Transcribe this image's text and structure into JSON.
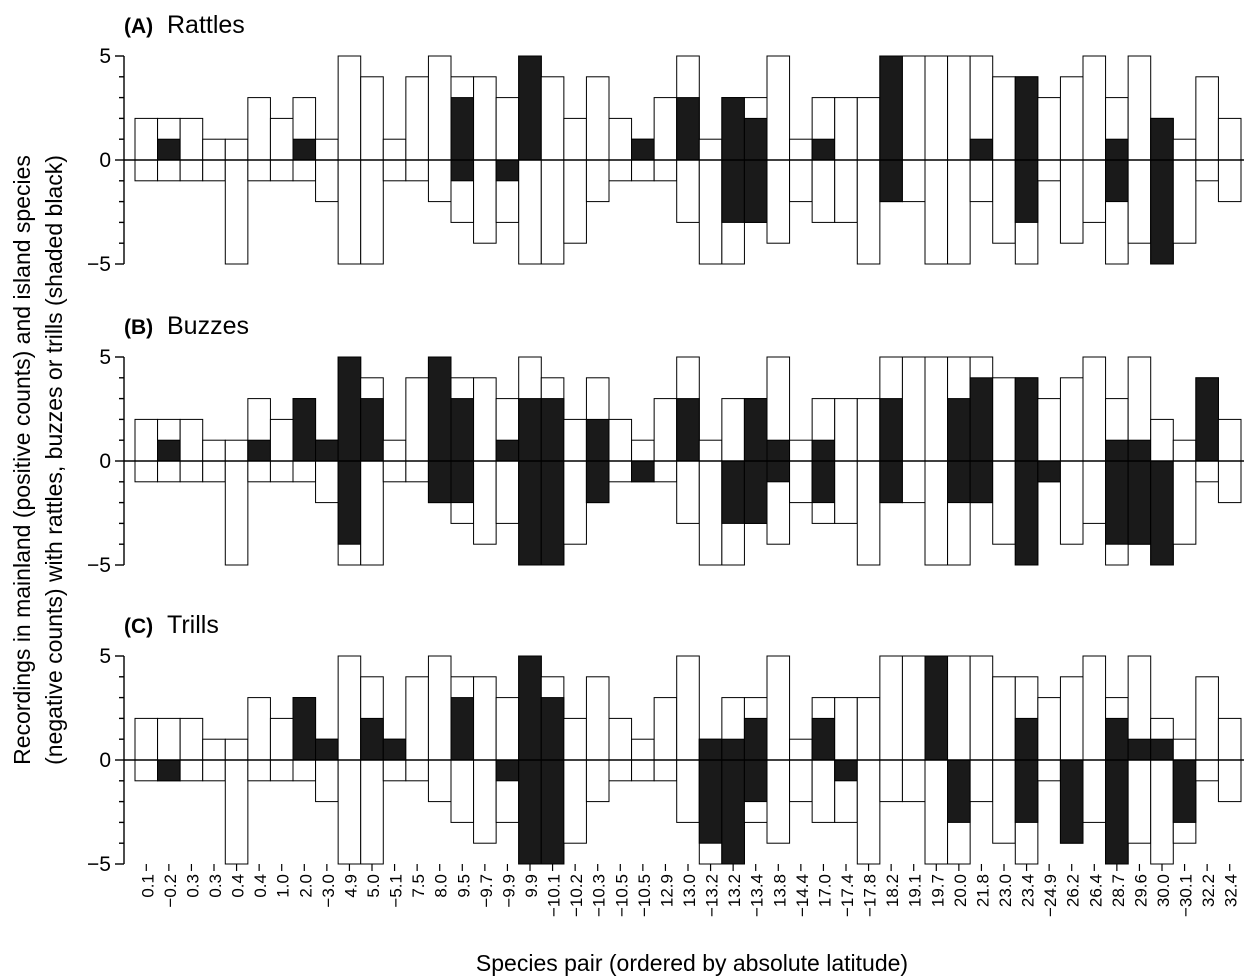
{
  "figure": {
    "ylabel_line1": "Recordings in mainland (positive counts) and island species",
    "ylabel_line2": "(negative counts) with rattles, buzzes or trills (shaded black)",
    "xlabel": "Species pair (ordered by absolute latitude)"
  },
  "chart_data": {
    "type": "bar",
    "categories": [
      "0.1",
      "−0.2",
      "0.3",
      "0.3",
      "0.4",
      "0.4",
      "1.0",
      "2.0",
      "−3.0",
      "4.9",
      "5.0",
      "−5.1",
      "7.5",
      "8.0",
      "9.5",
      "−9.7",
      "−9.9",
      "9.9",
      "−10.1",
      "−10.2",
      "−10.3",
      "−10.5",
      "−10.5",
      "12.9",
      "13.0",
      "−13.2",
      "13.2",
      "−13.4",
      "13.8",
      "−14.4",
      "17.0",
      "−17.4",
      "−17.8",
      "18.2",
      "19.1",
      "19.7",
      "20.0",
      "21.8",
      "23.0",
      "23.4",
      "−24.9",
      "26.2",
      "26.4",
      "28.7",
      "29.6",
      "30.0",
      "−30.1",
      "32.2",
      "32.4"
    ],
    "ylim": [
      -5,
      5
    ],
    "yticks": [
      "5",
      "0",
      "−5"
    ],
    "mainland_totals": [
      2,
      2,
      2,
      1,
      1,
      3,
      2,
      3,
      1,
      5,
      4,
      1,
      4,
      5,
      4,
      4,
      3,
      5,
      4,
      2,
      4,
      2,
      1,
      3,
      5,
      1,
      3,
      3,
      5,
      1,
      3,
      3,
      3,
      5,
      5,
      5,
      5,
      5,
      4,
      4,
      3,
      4,
      5,
      3,
      5,
      2,
      1,
      4,
      2
    ],
    "island_totals": [
      -1,
      -1,
      -1,
      -1,
      -5,
      -1,
      -1,
      -1,
      -2,
      -5,
      -5,
      -1,
      -1,
      -2,
      -3,
      -4,
      -3,
      -5,
      -5,
      -4,
      -2,
      -1,
      -1,
      -1,
      -3,
      -5,
      -5,
      -3,
      -4,
      -2,
      -3,
      -3,
      -5,
      -2,
      -2,
      -5,
      -5,
      -2,
      -4,
      -5,
      -1,
      -4,
      -3,
      -5,
      -4,
      -5,
      -4,
      -1,
      -2
    ],
    "series": [
      {
        "name": "Rattles",
        "panel_label": "(A)",
        "mainland_shaded": [
          0,
          1,
          0,
          0,
          0,
          0,
          0,
          1,
          0,
          0,
          0,
          0,
          0,
          0,
          3,
          0,
          0,
          5,
          0,
          0,
          0,
          0,
          1,
          0,
          3,
          0,
          3,
          2,
          0,
          0,
          1,
          0,
          0,
          5,
          0,
          0,
          0,
          1,
          0,
          4,
          0,
          0,
          0,
          1,
          0,
          2,
          0,
          0,
          0
        ],
        "island_shaded": [
          0,
          0,
          0,
          0,
          0,
          0,
          0,
          0,
          0,
          0,
          0,
          0,
          0,
          0,
          -1,
          0,
          -1,
          0,
          0,
          0,
          0,
          0,
          0,
          0,
          0,
          0,
          -3,
          -3,
          0,
          0,
          0,
          0,
          0,
          -2,
          0,
          0,
          0,
          0,
          0,
          -3,
          0,
          0,
          0,
          -2,
          0,
          -5,
          0,
          0,
          0
        ]
      },
      {
        "name": "Buzzes",
        "panel_label": "(B)",
        "mainland_shaded": [
          0,
          1,
          0,
          0,
          0,
          1,
          0,
          3,
          1,
          5,
          3,
          0,
          0,
          5,
          3,
          0,
          1,
          3,
          3,
          0,
          2,
          0,
          0,
          0,
          3,
          0,
          0,
          3,
          1,
          0,
          1,
          0,
          0,
          3,
          0,
          0,
          3,
          4,
          0,
          4,
          0,
          0,
          0,
          1,
          1,
          0,
          0,
          4,
          0
        ],
        "island_shaded": [
          0,
          0,
          0,
          0,
          0,
          0,
          0,
          0,
          0,
          -4,
          0,
          0,
          0,
          -2,
          -2,
          0,
          0,
          -5,
          -5,
          0,
          -2,
          0,
          -1,
          0,
          0,
          0,
          -3,
          -3,
          -1,
          0,
          -2,
          0,
          0,
          -2,
          0,
          0,
          -2,
          -2,
          0,
          -5,
          -1,
          0,
          0,
          -4,
          -4,
          -5,
          0,
          0,
          0
        ]
      },
      {
        "name": "Trills",
        "panel_label": "(C)",
        "mainland_shaded": [
          0,
          0,
          0,
          0,
          0,
          0,
          0,
          3,
          1,
          0,
          2,
          1,
          0,
          0,
          3,
          0,
          0,
          5,
          3,
          0,
          0,
          0,
          0,
          0,
          0,
          1,
          1,
          2,
          0,
          0,
          2,
          0,
          0,
          0,
          0,
          5,
          0,
          0,
          0,
          2,
          0,
          0,
          0,
          2,
          1,
          1,
          0,
          0,
          0
        ],
        "island_shaded": [
          0,
          -1,
          0,
          0,
          0,
          0,
          0,
          0,
          0,
          0,
          0,
          0,
          0,
          0,
          0,
          0,
          -1,
          -5,
          -5,
          0,
          0,
          0,
          0,
          0,
          0,
          -4,
          -5,
          -2,
          0,
          0,
          0,
          -1,
          0,
          0,
          0,
          0,
          -3,
          0,
          0,
          -3,
          0,
          -4,
          0,
          -5,
          0,
          0,
          -3,
          0,
          0
        ]
      }
    ]
  }
}
